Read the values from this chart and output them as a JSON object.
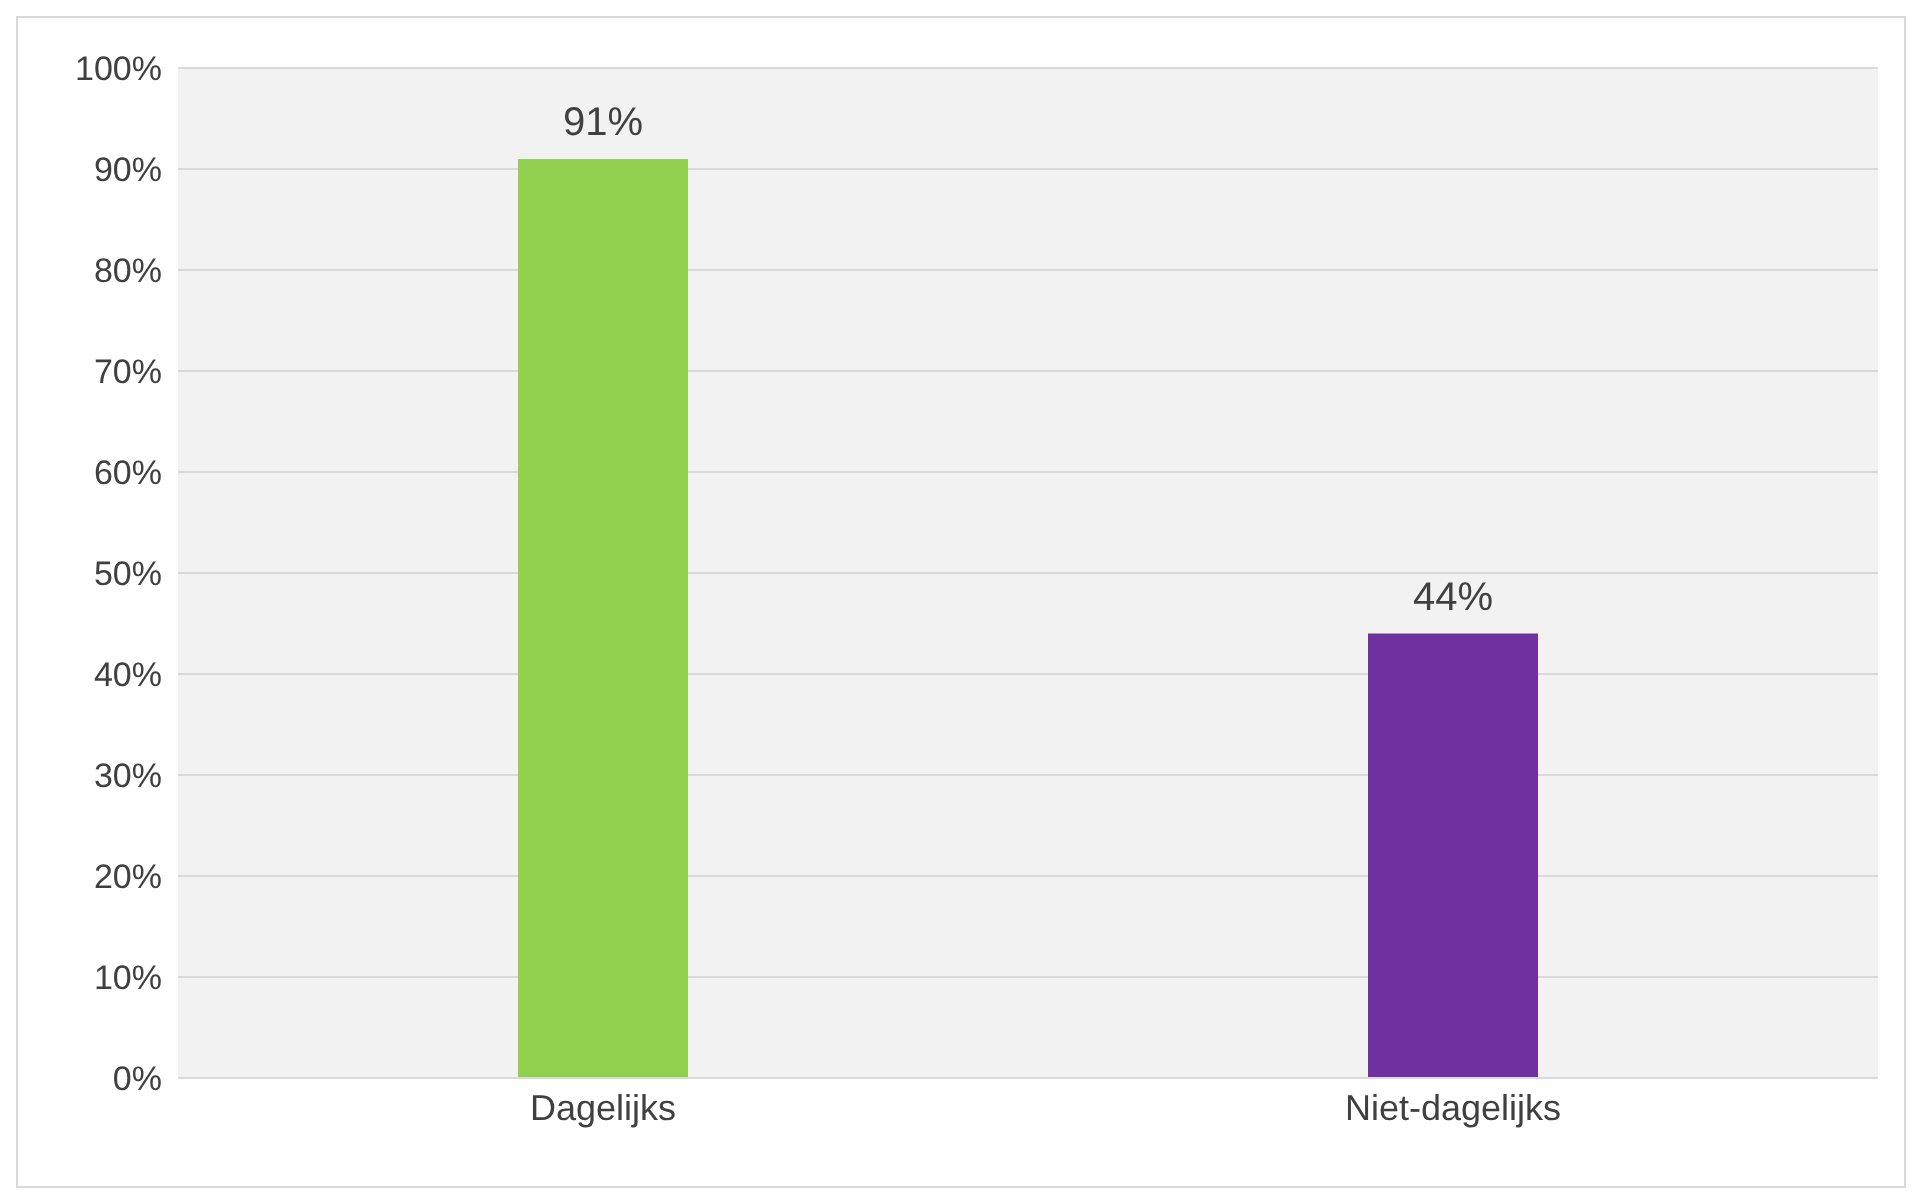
{
  "chart_data": {
    "type": "bar",
    "categories": [
      "Dagelijks",
      "Niet-dagelijks"
    ],
    "values": [
      91,
      44
    ],
    "colors": [
      "#92d050",
      "#7030a0"
    ],
    "value_labels": [
      "91%",
      "44%"
    ],
    "ylim": [
      0,
      100
    ],
    "yticks": [
      {
        "value": 0,
        "label": "0%"
      },
      {
        "value": 10,
        "label": "10%"
      },
      {
        "value": 20,
        "label": "20%"
      },
      {
        "value": 30,
        "label": "30%"
      },
      {
        "value": 40,
        "label": "40%"
      },
      {
        "value": 50,
        "label": "50%"
      },
      {
        "value": 60,
        "label": "60%"
      },
      {
        "value": 70,
        "label": "70%"
      },
      {
        "value": 80,
        "label": "80%"
      },
      {
        "value": 90,
        "label": "90%"
      },
      {
        "value": 100,
        "label": "100%"
      }
    ],
    "grid": "y"
  }
}
